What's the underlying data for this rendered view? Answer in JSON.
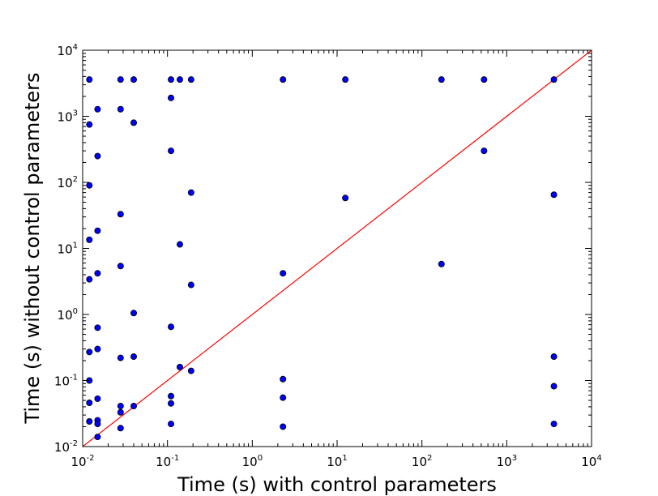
{
  "chart_data": {
    "type": "scatter",
    "xscale": "log",
    "yscale": "log",
    "xlim": [
      0.01,
      10000
    ],
    "ylim": [
      0.01,
      10000
    ],
    "xlabel": "Time (s) with control parameters",
    "ylabel": "Time (s) without control parameters",
    "xticks": [
      {
        "base": "10",
        "exp": "-2",
        "value": 0.01
      },
      {
        "base": "10",
        "exp": "-1",
        "value": 0.1
      },
      {
        "base": "10",
        "exp": "0",
        "value": 1
      },
      {
        "base": "10",
        "exp": "1",
        "value": 10
      },
      {
        "base": "10",
        "exp": "2",
        "value": 100
      },
      {
        "base": "10",
        "exp": "3",
        "value": 1000
      },
      {
        "base": "10",
        "exp": "4",
        "value": 10000
      }
    ],
    "yticks": [
      {
        "base": "10",
        "exp": "-2",
        "value": 0.01
      },
      {
        "base": "10",
        "exp": "-1",
        "value": 0.1
      },
      {
        "base": "10",
        "exp": "0",
        "value": 1
      },
      {
        "base": "10",
        "exp": "1",
        "value": 10
      },
      {
        "base": "10",
        "exp": "2",
        "value": 100
      },
      {
        "base": "10",
        "exp": "3",
        "value": 1000
      },
      {
        "base": "10",
        "exp": "4",
        "value": 10000
      }
    ],
    "reference_line": {
      "type": "y=x",
      "color": "#ff0000"
    },
    "marker_color": "#0000ff",
    "marker_edge": "#000000",
    "grid": false,
    "points": [
      [
        0.012,
        3600
      ],
      [
        0.012,
        750
      ],
      [
        0.012,
        90
      ],
      [
        0.012,
        13.5
      ],
      [
        0.012,
        3.4
      ],
      [
        0.012,
        0.27
      ],
      [
        0.012,
        0.1
      ],
      [
        0.012,
        0.046
      ],
      [
        0.012,
        0.024
      ],
      [
        0.015,
        1280
      ],
      [
        0.015,
        250
      ],
      [
        0.015,
        18.5
      ],
      [
        0.015,
        4.2
      ],
      [
        0.015,
        0.63
      ],
      [
        0.015,
        0.3
      ],
      [
        0.015,
        0.053
      ],
      [
        0.015,
        0.025
      ],
      [
        0.015,
        0.022
      ],
      [
        0.015,
        0.014
      ],
      [
        0.028,
        3600
      ],
      [
        0.028,
        1280
      ],
      [
        0.028,
        33
      ],
      [
        0.028,
        5.4
      ],
      [
        0.028,
        0.22
      ],
      [
        0.028,
        0.041
      ],
      [
        0.028,
        0.033
      ],
      [
        0.028,
        0.019
      ],
      [
        0.04,
        3600
      ],
      [
        0.04,
        800
      ],
      [
        0.04,
        1.05
      ],
      [
        0.04,
        0.23
      ],
      [
        0.04,
        0.041
      ],
      [
        0.11,
        3600
      ],
      [
        0.11,
        1900
      ],
      [
        0.11,
        300
      ],
      [
        0.11,
        0.65
      ],
      [
        0.11,
        0.058
      ],
      [
        0.11,
        0.045
      ],
      [
        0.11,
        0.022
      ],
      [
        0.14,
        3600
      ],
      [
        0.14,
        11.5
      ],
      [
        0.14,
        0.16
      ],
      [
        0.19,
        3600
      ],
      [
        0.19,
        70
      ],
      [
        0.19,
        2.8
      ],
      [
        0.19,
        0.14
      ],
      [
        2.3,
        3600
      ],
      [
        2.3,
        4.2
      ],
      [
        2.3,
        0.105
      ],
      [
        2.3,
        0.055
      ],
      [
        2.3,
        0.02
      ],
      [
        12.5,
        3600
      ],
      [
        12.5,
        58
      ],
      [
        170,
        3600
      ],
      [
        170,
        5.8
      ],
      [
        540,
        3600
      ],
      [
        540,
        300
      ],
      [
        3600,
        3600
      ],
      [
        3600,
        65
      ],
      [
        3600,
        0.23
      ],
      [
        3600,
        0.082
      ],
      [
        3600,
        0.022
      ]
    ]
  }
}
